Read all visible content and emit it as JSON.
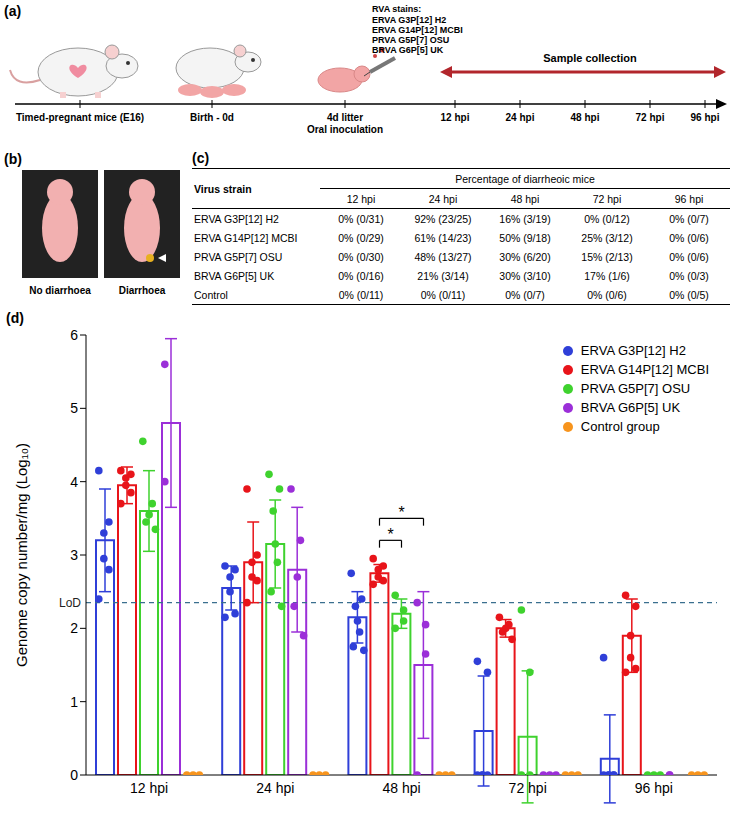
{
  "figure_panels": [
    "(a)",
    "(b)",
    "(c)",
    "(d)"
  ],
  "diagram": {
    "inoculum_title": "RVA stains:",
    "strains": [
      "ERVA G3P[12] H2",
      "ERVA G14P[12] MCBI",
      "PRVA G5P[7] OSU",
      "BRVA G6P[5] UK"
    ],
    "stages": [
      [
        "Timed-pregnant mice (E16)"
      ],
      [
        "Birth - 0d"
      ],
      [
        "4d litter",
        "Oral inoculation"
      ]
    ],
    "arrow_label": "Sample collection",
    "time_points": [
      "12 hpi",
      "24 hpi",
      "48 hpi",
      "72 hpi",
      "96 hpi"
    ]
  },
  "photos": {
    "labels": [
      "No diarrhoea",
      "Diarrhoea"
    ]
  },
  "table": {
    "header": [
      "Virus strain",
      "Percentage of diarrheoic mice"
    ],
    "columns": [
      "12 hpi",
      "24 hpi",
      "48 hpi",
      "72 hpi",
      "96 hpi"
    ],
    "rows": [
      [
        "ERVA G3P[12] H2",
        "0% (0/31)",
        "92% (23/25)",
        "16% (3/19)",
        "0% (0/12)",
        "0% (0/7)"
      ],
      [
        "ERVA G14P[12] MCBI",
        "0% (0/29)",
        "61% (14/23)",
        "50% (9/18)",
        "25% (3/12)",
        "0% (0/6)"
      ],
      [
        "PRVA G5P[7] OSU",
        "0% (0/30)",
        "48% (13/27)",
        "30% (6/20)",
        "15% (2/13)",
        "0% (0/6)"
      ],
      [
        "BRVA G6P[5] UK",
        "0% (0/16)",
        "21% (3/14)",
        "30% (3/10)",
        "17% (1/6)",
        "0% (0/3)"
      ],
      [
        "Control",
        "0% (0/11)",
        "0% (0/11)",
        "0% (0/7)",
        "0% (0/6)",
        "0% (0/5)"
      ]
    ]
  },
  "chart_data": {
    "type": "bar",
    "y_label": "Genome copy number/mg (Log₁₀)",
    "categories": [
      "12 hpi",
      "24 hpi",
      "48 hpi",
      "72 hpi",
      "96 hpi"
    ],
    "ylim": [
      0,
      6
    ],
    "yticks": [
      0,
      1,
      2,
      3,
      4,
      5,
      6
    ],
    "grid": false,
    "legend": "top-right",
    "series": [
      {
        "name": "ERVA G3P[12] H2",
        "color": "#2f3fd8",
        "values": [
          3.2,
          2.55,
          2.15,
          0.6,
          0.22
        ],
        "errors": [
          0.7,
          0.3,
          0.35,
          0.75,
          0.6
        ],
        "points": [
          [
            4.15,
            3.45,
            3.3,
            2.95,
            2.8,
            2.4
          ],
          [
            2.85,
            2.8,
            2.7,
            2.5,
            2.2,
            2.15
          ],
          [
            2.75,
            2.4,
            2.3,
            2.1,
            1.95,
            1.75,
            1.7
          ],
          [
            1.55,
            1.4,
            0,
            0,
            0,
            0
          ],
          [
            1.6,
            0,
            0,
            0,
            0,
            0
          ]
        ]
      },
      {
        "name": "ERVA G14P[12] MCBI",
        "color": "#e8141a",
        "values": [
          3.95,
          2.9,
          2.75,
          2.0,
          1.9
        ],
        "errors": [
          0.25,
          0.55,
          0.12,
          0.12,
          0.5
        ],
        "points": [
          [
            4.15,
            4.1,
            4.05,
            3.95,
            3.85,
            3.7
          ],
          [
            3.9,
            3.0,
            2.9,
            2.7,
            2.65,
            2.35
          ],
          [
            2.95,
            2.85,
            2.8,
            2.7,
            2.65,
            2.6
          ],
          [
            2.15,
            2.05,
            2.0,
            1.95,
            1.85
          ],
          [
            2.45,
            2.3,
            1.9,
            1.6,
            1.45,
            1.4
          ]
        ]
      },
      {
        "name": "PRVA G5P[7] OSU",
        "color": "#3fd22e",
        "values": [
          3.6,
          3.15,
          2.2,
          0.52,
          0
        ],
        "errors": [
          0.55,
          0.6,
          0.2,
          0.9,
          0
        ],
        "points": [
          [
            4.55,
            3.7,
            3.55,
            3.45,
            3.35
          ],
          [
            4.1,
            3.9,
            3.6,
            3.15,
            2.9,
            2.5,
            2.3
          ],
          [
            2.45,
            2.25,
            2.1,
            2.0
          ],
          [
            2.25,
            1.4,
            0,
            0
          ],
          [
            0,
            0,
            0
          ]
        ]
      },
      {
        "name": "BRVA G6P[5] UK",
        "color": "#9b2fd8",
        "values": [
          4.8,
          2.8,
          1.5,
          0,
          0
        ],
        "errors": [
          1.15,
          0.85,
          1.0,
          0,
          0
        ],
        "points": [
          [
            5.6,
            4.0
          ],
          [
            3.9,
            3.2,
            2.7,
            2.3,
            1.9
          ],
          [
            2.35,
            2.05,
            1.65,
            0
          ],
          [
            0,
            0,
            0
          ],
          [
            0,
            0
          ]
        ]
      },
      {
        "name": "Control group",
        "color": "#f7941d",
        "values": [
          0,
          0,
          0,
          0,
          0
        ],
        "errors": [
          0,
          0,
          0,
          0,
          0
        ],
        "points": [
          [
            0,
            0,
            0
          ],
          [
            0,
            0,
            0
          ],
          [
            0,
            0,
            0
          ],
          [
            0,
            0,
            0
          ],
          [
            0,
            0,
            0
          ]
        ]
      }
    ],
    "reference_line": {
      "value": 2.35,
      "label": "LoD",
      "line_style": "dashed"
    },
    "significance": [
      {
        "label": "*",
        "category": "48 hpi",
        "from": "ERVA G14P[12] MCBI",
        "to": "PRVA G5P[7] OSU"
      },
      {
        "label": "*",
        "category": "48 hpi",
        "from": "ERVA G14P[12] MCBI",
        "to": "BRVA G6P[5] UK"
      }
    ]
  }
}
